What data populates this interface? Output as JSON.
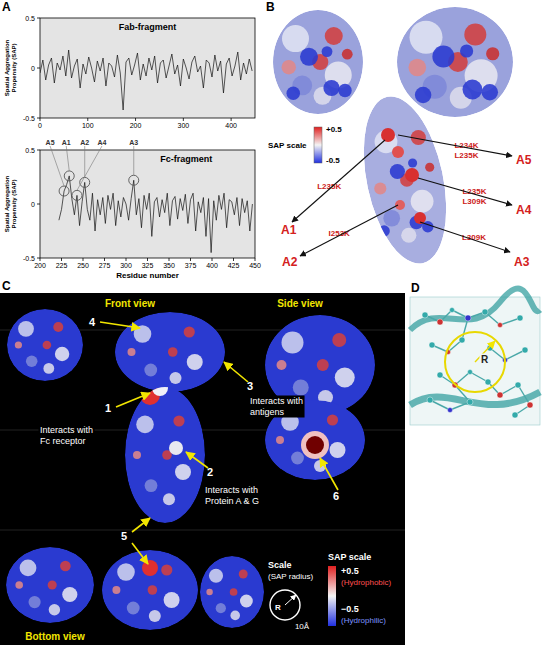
{
  "chart_data": [
    {
      "type": "line",
      "title": "Fab-fragment",
      "y_label": "Spatial Aggregation Propensity (SAP)",
      "color": "#111111",
      "x": [
        0,
        6,
        12,
        18,
        24,
        30,
        36,
        42,
        48,
        54,
        60,
        66,
        72,
        78,
        84,
        90,
        96,
        102,
        108,
        114,
        120,
        126,
        132,
        138,
        144,
        150,
        156,
        162,
        168,
        174,
        180,
        186,
        192,
        198,
        204,
        210,
        216,
        222,
        228,
        234,
        240,
        246,
        252,
        258,
        264,
        270,
        276,
        282,
        288,
        294,
        300,
        306,
        312,
        318,
        324,
        330,
        336,
        342,
        348,
        354,
        360,
        366,
        372,
        378,
        384,
        390,
        396,
        402,
        408,
        414,
        420,
        426,
        432,
        438,
        444
      ],
      "values": [
        -0.05,
        0.08,
        -0.12,
        0.03,
        0.1,
        -0.15,
        0.05,
        -0.02,
        0.12,
        -0.08,
        0.18,
        -0.1,
        0.02,
        0.09,
        -0.2,
        0.04,
        -0.06,
        0.11,
        0.0,
        -0.14,
        0.07,
        -0.03,
        0.1,
        -0.18,
        0.05,
        0.02,
        -0.09,
        0.13,
        -0.05,
        -0.42,
        0.06,
        0.1,
        -0.07,
        0.03,
        0.15,
        -0.12,
        0.04,
        -0.08,
        0.1,
        -0.02,
        0.12,
        -0.15,
        0.05,
        0.08,
        -0.1,
        0.02,
        0.14,
        -0.06,
        0.03,
        -0.18,
        0.09,
        0.0,
        -0.11,
        0.06,
        0.12,
        -0.04,
        0.02,
        -0.2,
        0.08,
        0.05,
        -0.09,
        0.13,
        -0.03,
        0.07,
        -0.25,
        0.04,
        0.1,
        -0.08,
        0.02,
        0.16,
        -0.12,
        0.05,
        -0.06,
        0.09,
        -0.03
      ],
      "xlim": [
        0,
        450
      ],
      "xticks": [
        0,
        100,
        200,
        300,
        400
      ],
      "ylim": [
        -0.5,
        0.5
      ],
      "yticks": [
        -0.5,
        0,
        0.5
      ]
    },
    {
      "type": "line",
      "title": "Fc-fragment",
      "x_label": "Residue number",
      "y_label": "Spatial Aggregation Propensity (SAP)",
      "color": "#111111",
      "x": [
        222,
        225,
        228,
        231,
        234,
        237,
        240,
        243,
        246,
        249,
        252,
        255,
        258,
        261,
        264,
        267,
        270,
        273,
        276,
        279,
        282,
        285,
        288,
        291,
        294,
        297,
        300,
        303,
        306,
        309,
        312,
        315,
        318,
        321,
        324,
        327,
        330,
        333,
        336,
        339,
        342,
        345,
        348,
        351,
        354,
        357,
        360,
        363,
        366,
        369,
        372,
        375,
        378,
        381,
        384,
        387,
        390,
        393,
        396,
        399,
        402,
        405,
        408,
        411,
        414,
        417,
        420,
        423,
        426,
        429,
        432,
        435,
        438,
        441,
        444,
        447
      ],
      "values": [
        -0.15,
        -0.05,
        0.12,
        0.18,
        0.26,
        0.05,
        -0.1,
        0.08,
        -0.2,
        0.02,
        0.2,
        -0.05,
        -0.15,
        0.1,
        -0.25,
        0.04,
        -0.1,
        0.06,
        -0.18,
        0.08,
        -0.05,
        0.1,
        -0.2,
        0.03,
        -0.12,
        0.06,
        0.0,
        -0.15,
        0.05,
        0.22,
        -0.1,
        0.05,
        -0.22,
        0.08,
        -0.05,
        0.1,
        -0.3,
        0.02,
        0.06,
        -0.12,
        0.04,
        -0.08,
        0.1,
        -0.2,
        0.03,
        0.07,
        -0.14,
        0.05,
        -0.06,
        0.09,
        -0.18,
        0.04,
        0.1,
        -0.25,
        0.02,
        -0.08,
        0.06,
        -0.3,
        0.05,
        -0.45,
        0.03,
        -0.15,
        0.08,
        -0.05,
        0.1,
        -0.22,
        0.04,
        0.02,
        -0.1,
        0.06,
        -0.2,
        0.05,
        -0.08,
        0.03,
        -0.25,
        0.0
      ],
      "xlim": [
        200,
        450
      ],
      "xticks": [
        200,
        225,
        250,
        275,
        300,
        325,
        350,
        375,
        400,
        425,
        450
      ],
      "ylim": [
        -0.5,
        0.5
      ],
      "yticks": [
        -0.5,
        0,
        0.5
      ],
      "annotations": [
        {
          "label": "A1",
          "x": 234,
          "y": 0.26
        },
        {
          "label": "A2",
          "x": 252,
          "y": 0.2
        },
        {
          "label": "A3",
          "x": 309,
          "y": 0.22
        },
        {
          "label": "A4",
          "x": 243,
          "y": 0.08
        },
        {
          "label": "A5",
          "x": 228,
          "y": 0.12
        }
      ]
    }
  ],
  "panel_labels": [
    "A",
    "B",
    "C",
    "D"
  ],
  "panel_b": {
    "scale_title": "SAP scale",
    "scale_max": "+0.5",
    "scale_min": "-0.5",
    "sites": [
      {
        "label": "A1",
        "mutations": [
          "L235K"
        ]
      },
      {
        "label": "A2",
        "mutations": [
          "I253K"
        ]
      },
      {
        "label": "A3",
        "mutations": [
          "L309K"
        ]
      },
      {
        "label": "A4",
        "mutations": [
          "L235K",
          "L309K"
        ]
      },
      {
        "label": "A5",
        "mutations": [
          "L234K",
          "L235K"
        ]
      }
    ]
  },
  "panel_c": {
    "views": [
      "Front view",
      "Side view",
      "Bottom view"
    ],
    "callouts": [
      {
        "number": 1,
        "text": "Interacts with Fc receptor"
      },
      {
        "number": 2,
        "text": "Interacts with Protein A & G"
      },
      {
        "number": 3,
        "text": "Interacts with antigens"
      },
      {
        "number": 4
      },
      {
        "number": 5
      },
      {
        "number": 6
      }
    ],
    "scale_title": "Scale",
    "scale_subtitle": "(SAP radius)",
    "radius_label": "R",
    "radius_value": "10Å",
    "sap_title": "SAP scale",
    "sap_max": "+0.5",
    "sap_max_note": "(Hydrophobic)",
    "sap_min": "−0.5",
    "sap_min_note": "(Hydrophilic)"
  },
  "panel_d": {
    "radius_label": "R"
  }
}
